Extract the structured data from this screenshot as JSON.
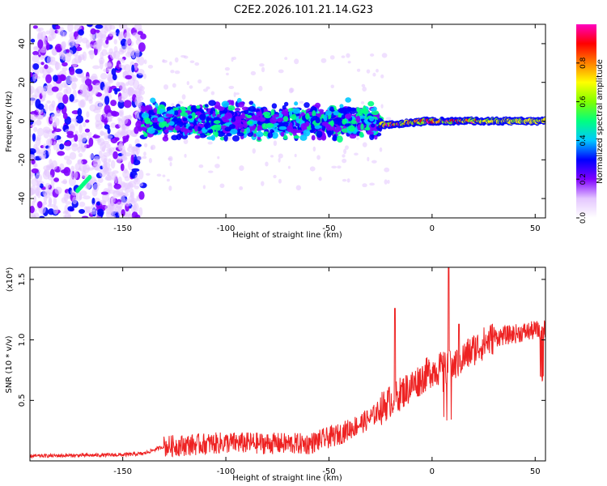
{
  "title": "C2E2.2026.101.21.14.G23",
  "chart_data": [
    {
      "type": "heatmap",
      "name": "spectrogram",
      "xlabel": "Height of straight line (km)",
      "ylabel": "Frequency (Hz)",
      "xlim": [
        -195,
        55
      ],
      "ylim": [
        -50,
        50
      ],
      "xticks": [
        -150,
        -100,
        -50,
        0,
        50
      ],
      "yticks": [
        -40,
        -20,
        0,
        20,
        40
      ],
      "x_tick_labels": [
        "-150",
        "-100",
        "-50",
        "0",
        "50"
      ],
      "y_tick_labels": [
        "-40",
        "-20",
        "0",
        "20",
        "40"
      ],
      "colorbar": {
        "label": "Normalized spectral amplitude",
        "range": [
          0,
          1
        ],
        "ticks": [
          0.0,
          0.2,
          0.4,
          0.6,
          0.8
        ],
        "tick_labels": [
          "0.0",
          "0.2",
          "0.4",
          "0.6",
          "0.8"
        ],
        "colors": [
          "#ffffff",
          "#e4c6ff",
          "#8000ff",
          "#0000ff",
          "#00c8ff",
          "#00ff80",
          "#80ff00",
          "#ffff00",
          "#ff8000",
          "#ff0000",
          "#ff00c0"
        ]
      },
      "regions": [
        {
          "x_range": [
            -195,
            -140
          ],
          "freq_range": [
            -50,
            50
          ],
          "amplitude": "0.05-0.3 (broadband noise)"
        },
        {
          "x_range": [
            -140,
            -25
          ],
          "freq_center": 0,
          "freq_halfwidth": 7,
          "amplitude": "0.2-0.5"
        },
        {
          "x_range": [
            -25,
            55
          ],
          "freq_center": 0,
          "freq_halfwidth": 3,
          "amplitude": "0.6-1.0"
        }
      ],
      "streak": {
        "x_range": [
          -172,
          -166
        ],
        "freq_range": [
          -36,
          -29
        ]
      }
    },
    {
      "type": "line",
      "name": "snr",
      "xlabel": "Height of straight line (km)",
      "ylabel": "SNR (10 * v/v)",
      "scale_label": "(x10⁴)",
      "xlim": [
        -195,
        55
      ],
      "ylim": [
        0,
        1.6
      ],
      "xticks": [
        -150,
        -100,
        -50,
        0,
        50
      ],
      "yticks": [
        0.5,
        1.0,
        1.5
      ],
      "x_tick_labels": [
        "-150",
        "-100",
        "-50",
        "0",
        "50"
      ],
      "y_tick_labels": [
        "0.5",
        "1.0",
        "1.5"
      ],
      "color": "#ee2222",
      "trend": {
        "x": [
          -195,
          -150,
          -140,
          -130,
          -100,
          -60,
          -45,
          -30,
          -20,
          -10,
          0,
          10,
          20,
          30,
          40,
          50,
          55
        ],
        "y": [
          0.04,
          0.05,
          0.06,
          0.12,
          0.15,
          0.14,
          0.22,
          0.35,
          0.5,
          0.62,
          0.75,
          0.78,
          0.92,
          1.02,
          1.05,
          1.08,
          1.08
        ]
      },
      "spikes": [
        {
          "x": -18,
          "y": 1.26
        },
        {
          "x": 8,
          "y": 1.6
        },
        {
          "x": 13,
          "y": 1.13
        }
      ]
    }
  ]
}
